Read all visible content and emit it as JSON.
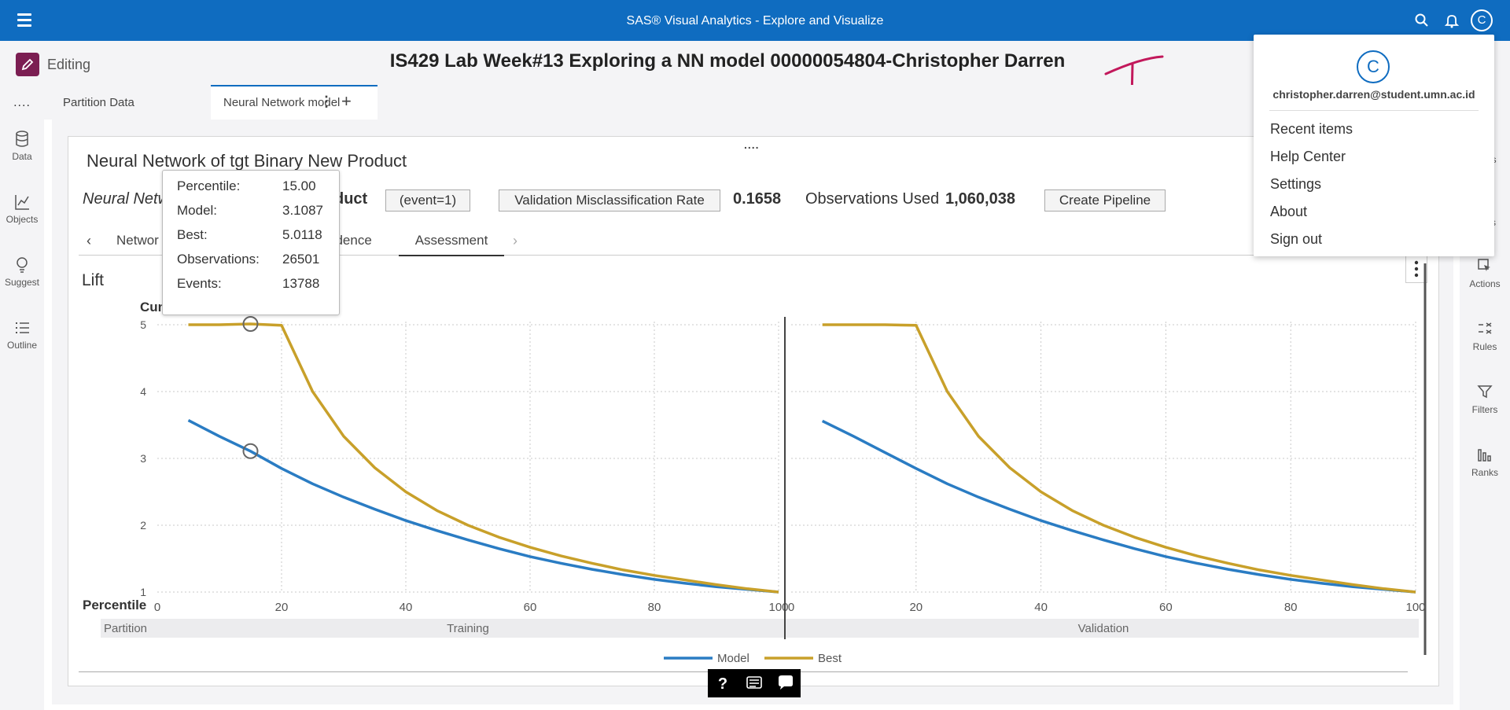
{
  "app": {
    "window_title": "SAS® Visual Analytics - Explore and Visualize",
    "mode_label": "Editing",
    "report_title": "IS429 Lab Week#13 Exploring a NN model 00000054804-Christopher Darren"
  },
  "left_nav": {
    "more_label": "....",
    "items": [
      {
        "label": "Data",
        "icon": "database-icon"
      },
      {
        "label": "Objects",
        "icon": "chart-icon"
      },
      {
        "label": "Suggest",
        "icon": "lightbulb-icon"
      },
      {
        "label": "Outline",
        "icon": "list-icon"
      }
    ]
  },
  "right_nav": {
    "items": [
      {
        "label": "Actions",
        "icon": "cursor-icon"
      },
      {
        "label": "Rules",
        "icon": "rules-icon"
      },
      {
        "label": "Filters",
        "icon": "filter-icon"
      },
      {
        "label": "Ranks",
        "icon": "ranks-icon"
      }
    ],
    "partial_top": "ns",
    "partial_mid": "s"
  },
  "tabs": [
    {
      "label": "Partition Data",
      "active": false
    },
    {
      "label": "Neural Network model",
      "active": true
    }
  ],
  "object": {
    "title": "Neural Network of tgt Binary New Product",
    "subtitle_left": "Neural Netw",
    "subtitle_right": "duct",
    "event_chip": "(event=1)",
    "metric_chip": "Validation Misclassification Rate",
    "metric_value": "0.1658",
    "obs_label": "Observations Used",
    "obs_value": "1,060,038",
    "pipeline_button": "Create Pipeline",
    "drag_handle": "....",
    "subtabs": {
      "first": "Networ",
      "second": "ndence",
      "active": "Assessment"
    }
  },
  "chart_data": {
    "type": "line",
    "title": "Lift",
    "ylabel": "Cum",
    "xlabel": "Percentile",
    "ylim": [
      1,
      5
    ],
    "xlim": [
      0,
      100
    ],
    "yticks": [
      "1",
      "2",
      "3",
      "4",
      "5"
    ],
    "xticks": [
      "0",
      "20",
      "40",
      "60",
      "80",
      "100"
    ],
    "panel_axis_label": "Partition",
    "panels": [
      "Training",
      "Validation"
    ],
    "x": [
      5,
      10,
      15,
      20,
      25,
      30,
      35,
      40,
      45,
      50,
      55,
      60,
      65,
      70,
      75,
      80,
      85,
      90,
      95,
      100
    ],
    "series": [
      {
        "name": "Model",
        "color": "#2a7cc3",
        "training": [
          3.57,
          3.33,
          3.1087,
          2.85,
          2.62,
          2.42,
          2.24,
          2.07,
          1.92,
          1.78,
          1.65,
          1.53,
          1.43,
          1.34,
          1.26,
          1.19,
          1.13,
          1.08,
          1.04,
          1.0
        ],
        "validation": [
          3.56,
          3.33,
          3.09,
          2.85,
          2.62,
          2.42,
          2.24,
          2.07,
          1.92,
          1.78,
          1.65,
          1.53,
          1.43,
          1.34,
          1.26,
          1.19,
          1.13,
          1.08,
          1.04,
          1.0
        ]
      },
      {
        "name": "Best",
        "color": "#c8a02a",
        "training": [
          5.0,
          5.0,
          5.0118,
          4.99,
          4.0,
          3.33,
          2.86,
          2.5,
          2.22,
          2.0,
          1.82,
          1.67,
          1.54,
          1.43,
          1.33,
          1.25,
          1.18,
          1.11,
          1.05,
          1.0
        ],
        "validation": [
          5.0,
          5.0,
          5.0,
          4.99,
          4.0,
          3.33,
          2.86,
          2.5,
          2.22,
          2.0,
          1.82,
          1.67,
          1.54,
          1.43,
          1.33,
          1.25,
          1.18,
          1.11,
          1.05,
          1.0
        ]
      }
    ],
    "grid": true,
    "legend": "bottom-center"
  },
  "tooltip": {
    "rows": [
      {
        "label": "Percentile:",
        "value": "15.00"
      },
      {
        "label": "Model:",
        "value": "3.1087"
      },
      {
        "label": "Best:",
        "value": "5.0118"
      },
      {
        "label": "Observations:",
        "value": "26501"
      },
      {
        "label": "Events:",
        "value": "13788"
      }
    ]
  },
  "user_menu": {
    "avatar_letter": "C",
    "email": "christopher.darren@student.umn.ac.id",
    "items": [
      "Recent items",
      "Help Center",
      "Settings",
      "About",
      "Sign out"
    ]
  },
  "colors": {
    "header_blue": "#0f6cc0",
    "editing_accent": "#7b1e52",
    "handwriting": "#c2185b"
  }
}
